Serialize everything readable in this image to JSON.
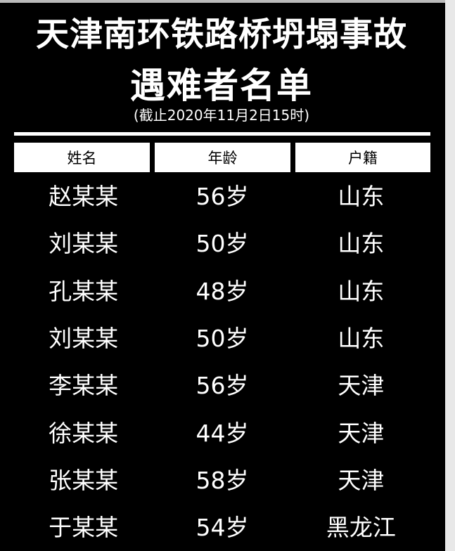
{
  "title_line1": "天津南环铁路桥坍塌事故",
  "title_line2": "遇难者名单",
  "subtitle": "(截止2020年11月2日15时)",
  "table": {
    "headers": [
      "姓名",
      "年龄",
      "户籍"
    ],
    "rows": [
      [
        "赵某某",
        "56岁",
        "山东"
      ],
      [
        "刘某某",
        "50岁",
        "山东"
      ],
      [
        "孔某某",
        "48岁",
        "山东"
      ],
      [
        "刘某某",
        "50岁",
        "山东"
      ],
      [
        "李某某",
        "56岁",
        "天津"
      ],
      [
        "徐某某",
        "44岁",
        "天津"
      ],
      [
        "张某某",
        "58岁",
        "天津"
      ],
      [
        "于某某",
        "54岁",
        "黑龙江"
      ]
    ]
  }
}
